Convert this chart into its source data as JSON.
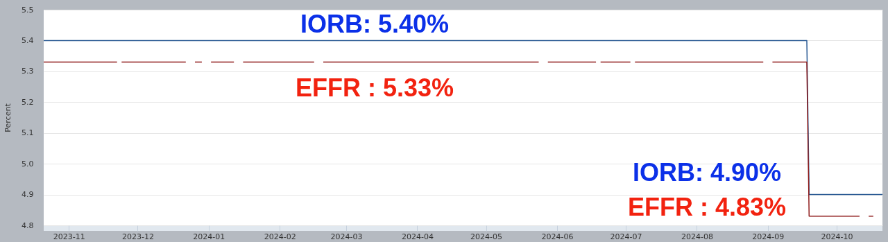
{
  "chart_data": {
    "type": "line",
    "ylabel": "Percent",
    "xlim": [
      "2023-10-21",
      "2024-10-21"
    ],
    "xticks": [
      "2023-11",
      "2023-12",
      "2024-01",
      "2024-02",
      "2024-03",
      "2024-04",
      "2024-05",
      "2024-06",
      "2024-07",
      "2024-08",
      "2024-09",
      "2024-10"
    ],
    "ylim": [
      4.8,
      5.5
    ],
    "yticks": [
      4.8,
      4.9,
      {
        "value": 5,
        "label": "5.0"
      },
      5.1,
      5.2,
      5.3,
      5.4,
      5.5
    ],
    "grid": "y",
    "marker": "none",
    "line_style": "solid",
    "series": [
      {
        "color": "#2b5b94",
        "x": [
          "2023-10-21",
          "2024-09-18",
          "2024-09-19",
          "2024-10-21"
        ],
        "values": [
          5.4,
          5.4,
          4.9,
          4.9
        ]
      },
      {
        "color": "#8e1b1b",
        "x": [
          "2023-10-21",
          "2023-11-22",
          "2023-11-23",
          "2023-11-24",
          "2023-12-22",
          "2023-12-25",
          "2023-12-26",
          "2023-12-29",
          "2024-01-01",
          "2024-01-02",
          "2024-01-12",
          "2024-01-15",
          "2024-01-16",
          "2024-02-16",
          "2024-02-19",
          "2024-02-20",
          "2024-05-24",
          "2024-05-27",
          "2024-05-28",
          "2024-06-18",
          "2024-06-19",
          "2024-06-20",
          "2024-07-03",
          "2024-07-04",
          "2024-07-05",
          "2024-08-30",
          "2024-09-02",
          "2024-09-03",
          "2024-09-18",
          "2024-09-19",
          "2024-10-11",
          "2024-10-14",
          "2024-10-15",
          "2024-10-17"
        ],
        "values": [
          5.33,
          5.33,
          null,
          5.33,
          5.33,
          null,
          5.33,
          5.33,
          null,
          5.33,
          5.33,
          null,
          5.33,
          5.33,
          null,
          5.33,
          5.33,
          null,
          5.33,
          5.33,
          null,
          5.33,
          5.33,
          null,
          5.33,
          5.33,
          null,
          5.33,
          5.33,
          4.83,
          4.83,
          null,
          4.83,
          4.83
        ]
      }
    ],
    "annotations": [
      "IORB: 5.40%",
      "EFFR : 5.33%",
      "IORB: 4.90%",
      "EFFR : 4.83%"
    ]
  }
}
